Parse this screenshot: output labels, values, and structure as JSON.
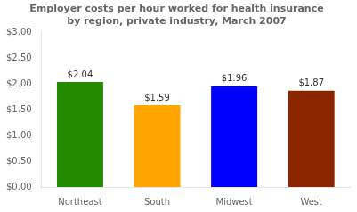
{
  "chart_data": {
    "type": "bar",
    "title": "Employer costs per hour worked for health insurance\nby region, private industry, March 2007",
    "categories": [
      "Northeast",
      "South",
      "Midwest",
      "West"
    ],
    "values": [
      2.04,
      1.59,
      1.96,
      1.87
    ],
    "value_labels": [
      "$2.04",
      "$1.59",
      "$1.96",
      "$1.87"
    ],
    "colors": [
      "#228B00",
      "#FFA500",
      "#0000FF",
      "#8B2500"
    ],
    "ylim": [
      0,
      3.0
    ],
    "yticks": [
      {
        "value": 0.0,
        "label": "$0.00"
      },
      {
        "value": 0.5,
        "label": "$0.50"
      },
      {
        "value": 1.0,
        "label": "$1.00"
      },
      {
        "value": 1.5,
        "label": "$1.50"
      },
      {
        "value": 2.0,
        "label": "$2.00"
      },
      {
        "value": 2.5,
        "label": "$2.50"
      },
      {
        "value": 3.0,
        "label": "$3.00"
      }
    ],
    "grid": false,
    "data_labels": true
  }
}
